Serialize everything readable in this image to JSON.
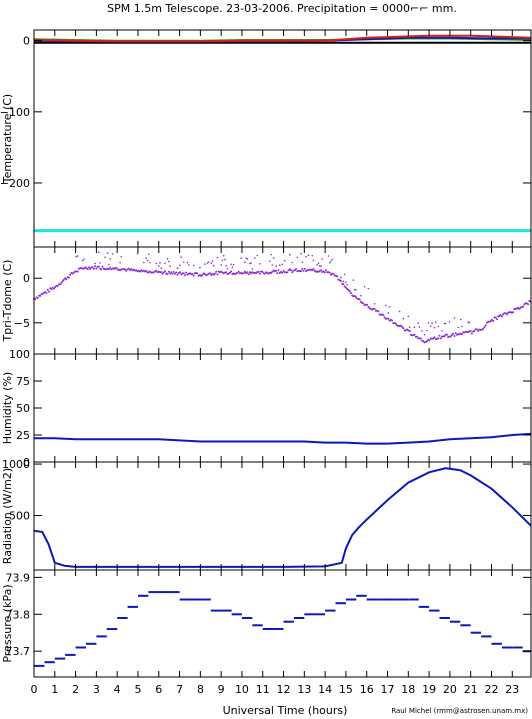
{
  "header": {
    "title": "SPM 1.5m Telescope. 23-03-2006. Precipitation = 0000⌐⌐ mm."
  },
  "footer": {
    "xlabel": "Universal Time (hours)",
    "credit": "Raul Michel (rmm@astrosen.unam.mx)"
  },
  "x_axis": {
    "min": 0,
    "max": 23.9,
    "ticks": [
      0,
      1,
      2,
      3,
      4,
      5,
      6,
      7,
      8,
      9,
      10,
      11,
      12,
      13,
      14,
      15,
      16,
      17,
      18,
      19,
      20,
      21,
      22,
      23
    ]
  },
  "colors": {
    "blue": "#0a1ab8",
    "purple": "#8e2bd6",
    "cyan": "#19e1ea",
    "red": "#e01818",
    "green": "#16b016",
    "black": "#000000"
  },
  "chart_data": [
    {
      "type": "line",
      "ylabel": "Temperature (C)",
      "ylim": [
        -290,
        15
      ],
      "yticks": [
        0,
        -100,
        -200
      ],
      "series": [
        {
          "color": "#19e1ea",
          "x": [
            0,
            23.9
          ],
          "y": [
            -267,
            -267
          ]
        },
        {
          "color": "#000000",
          "x": [
            0,
            23.9
          ],
          "y": [
            -3,
            -3
          ]
        },
        {
          "color": "#16b016",
          "x": [
            0,
            2,
            4,
            6,
            8,
            10,
            12,
            14,
            16,
            18,
            20,
            22,
            23.9
          ],
          "y": [
            2,
            1,
            0,
            0,
            0,
            1,
            1,
            1,
            2,
            3,
            3,
            2,
            1
          ]
        },
        {
          "color": "#0a1ab8",
          "x": [
            0,
            2,
            4,
            6,
            8,
            10,
            12,
            14,
            16,
            18,
            20,
            22,
            23.9
          ],
          "y": [
            0,
            -1,
            -1,
            -1,
            -1,
            -1,
            -1,
            0,
            2,
            4,
            4,
            3,
            3
          ]
        },
        {
          "color": "#e01818",
          "x": [
            0,
            2,
            4,
            6,
            8,
            10,
            12,
            14,
            15,
            16,
            17,
            18,
            19,
            20,
            21,
            22,
            23,
            23.9
          ],
          "y": [
            1,
            0,
            -1,
            -1,
            -1,
            0,
            0,
            0,
            2,
            4,
            5,
            6,
            7,
            7,
            7,
            6,
            5,
            4
          ]
        }
      ]
    },
    {
      "type": "scatter",
      "ylabel": "Tpri-Tdome (C)",
      "ylim": [
        -8.5,
        3.5
      ],
      "yticks": [
        0,
        -5
      ],
      "series": [
        {
          "color": "#8e2bd6",
          "x": [
            0,
            1,
            2,
            2.5,
            3,
            4,
            5,
            6,
            7,
            8,
            9,
            10,
            11,
            12,
            13,
            14,
            14.5,
            15,
            15.5,
            16,
            17,
            18,
            18.8,
            19.5,
            20,
            21,
            21.5,
            22,
            23,
            23.9
          ],
          "y": [
            -2.3,
            -1,
            0.8,
            1.2,
            1.2,
            1.1,
            0.8,
            0.7,
            0.5,
            0.4,
            0.6,
            0.6,
            0.6,
            0.8,
            0.9,
            0.8,
            0.3,
            -1.2,
            -2.2,
            -3,
            -4.5,
            -6,
            -7.1,
            -6.6,
            -6.4,
            -6.1,
            -5.7,
            -4.7,
            -3.7,
            -2.6
          ]
        }
      ]
    },
    {
      "type": "line",
      "ylabel": "Humidity (%)",
      "ylim": [
        0,
        100
      ],
      "yticks": [
        0,
        25,
        50,
        75,
        100
      ],
      "series": [
        {
          "color": "#0a1ab8",
          "x": [
            0,
            1,
            2,
            3,
            4,
            5,
            6,
            7,
            8,
            9,
            10,
            11,
            12,
            13,
            14,
            15,
            16,
            17,
            18,
            19,
            20,
            21,
            22,
            23,
            23.9
          ],
          "y": [
            22,
            22,
            21,
            21,
            21,
            21,
            21,
            20,
            19,
            19,
            19,
            19,
            19,
            19,
            18,
            18,
            17,
            17,
            18,
            19,
            21,
            22,
            23,
            25,
            26
          ]
        }
      ]
    },
    {
      "type": "line",
      "ylabel": "Radiation (W/m2)",
      "ylim": [
        -30,
        1020
      ],
      "yticks": [
        500,
        1000
      ],
      "series": [
        {
          "color": "#0a1ab8",
          "x": [
            0,
            0.4,
            0.7,
            1.0,
            1.5,
            2,
            4,
            8,
            12,
            14,
            14.8,
            15.0,
            15.3,
            15.6,
            16,
            17,
            18,
            19,
            19.8,
            20.5,
            21,
            22,
            23,
            23.9
          ],
          "y": [
            350,
            340,
            220,
            40,
            10,
            0,
            0,
            0,
            0,
            5,
            40,
            180,
            310,
            380,
            460,
            650,
            820,
            920,
            960,
            940,
            890,
            760,
            580,
            400
          ]
        }
      ]
    },
    {
      "type": "scatter",
      "ylabel": "Pressure (kPa)",
      "ylim": [
        73.63,
        73.92
      ],
      "yticks": [
        73.7,
        73.8,
        73.9
      ],
      "series": [
        {
          "color": "#0a1ab8",
          "x": [
            0,
            0.5,
            1.0,
            1.5,
            2.0,
            2.5,
            3.0,
            3.5,
            4.0,
            4.5,
            5.0,
            5.5,
            6.0,
            6.5,
            7.0,
            7.5,
            8.0,
            8.5,
            9.0,
            9.5,
            10.0,
            10.5,
            11.0,
            11.5,
            12.0,
            12.5,
            13.0,
            13.5,
            14.0,
            14.5,
            15.0,
            15.5,
            16.0,
            16.5,
            17.0,
            17.5,
            18.0,
            18.5,
            19.0,
            19.5,
            20.0,
            20.5,
            21.0,
            21.5,
            22.0,
            22.5,
            23.0,
            23.5
          ],
          "y": [
            73.66,
            73.67,
            73.68,
            73.69,
            73.71,
            73.72,
            73.74,
            73.76,
            73.79,
            73.82,
            73.85,
            73.86,
            73.86,
            73.86,
            73.84,
            73.84,
            73.84,
            73.81,
            73.81,
            73.8,
            73.79,
            73.77,
            73.76,
            73.76,
            73.78,
            73.79,
            73.8,
            73.8,
            73.81,
            73.83,
            73.84,
            73.85,
            73.84,
            73.84,
            73.84,
            73.84,
            73.84,
            73.82,
            73.81,
            73.79,
            73.78,
            73.77,
            73.75,
            73.74,
            73.72,
            73.71,
            73.71,
            73.7
          ]
        }
      ]
    }
  ]
}
